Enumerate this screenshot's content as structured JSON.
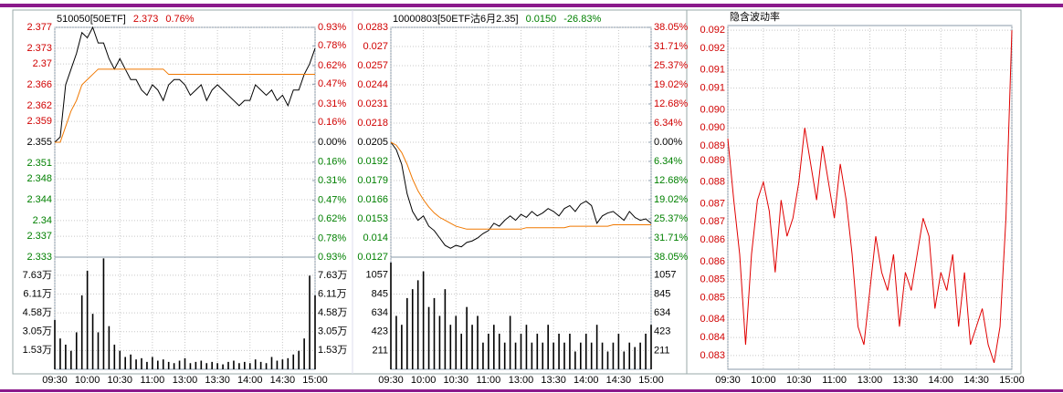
{
  "chart_data": [
    {
      "type": "line",
      "header": [
        "510050[50ETF]",
        "2.373",
        "0.76%"
      ],
      "header_colors": [
        "#000000",
        "#d00000",
        "#d00000"
      ],
      "up_color": "#d00000",
      "down_color": "#008000",
      "grid": true,
      "x": [
        0,
        5,
        10,
        15,
        20,
        25,
        30,
        35,
        40,
        45,
        50,
        55,
        60,
        65,
        70,
        75,
        80,
        85,
        90,
        95,
        100,
        105,
        110,
        115,
        120,
        125,
        130,
        135,
        140,
        145,
        150,
        155,
        160,
        165,
        170,
        175,
        180,
        185,
        190,
        195,
        200,
        205,
        210,
        215,
        220,
        225,
        230,
        235,
        240
      ],
      "xlim": [
        0,
        240
      ],
      "xticks": [
        {
          "value": 0,
          "label": "09:30"
        },
        {
          "value": 30,
          "label": "10:00"
        },
        {
          "value": 60,
          "label": "10:30"
        },
        {
          "value": 90,
          "label": "11:00"
        },
        {
          "value": 120,
          "label": "13:00"
        },
        {
          "value": 150,
          "label": "13:30"
        },
        {
          "value": 180,
          "label": "14:00"
        },
        {
          "value": 210,
          "label": "14:30"
        },
        {
          "value": 240,
          "label": "15:00"
        }
      ],
      "ylim": [
        2.333,
        2.377
      ],
      "yticks": [
        2.377,
        2.373,
        2.37,
        2.366,
        2.362,
        2.359,
        2.355,
        2.351,
        2.348,
        2.344,
        2.34,
        2.337,
        2.333
      ],
      "y2lim": [
        -0.93,
        0.93
      ],
      "y2ticks": [
        {
          "value": 0.93,
          "label": "0.93%"
        },
        {
          "value": 0.78,
          "label": "0.78%"
        },
        {
          "value": 0.62,
          "label": "0.62%"
        },
        {
          "value": 0.47,
          "label": "0.47%"
        },
        {
          "value": 0.31,
          "label": "0.31%"
        },
        {
          "value": 0.16,
          "label": "0.16%"
        },
        {
          "value": 0,
          "label": "0.00%"
        },
        {
          "value": -0.16,
          "label": "0.16%"
        },
        {
          "value": -0.31,
          "label": "0.31%"
        },
        {
          "value": -0.47,
          "label": "0.47%"
        },
        {
          "value": -0.62,
          "label": "0.62%"
        },
        {
          "value": -0.78,
          "label": "0.78%"
        },
        {
          "value": -0.93,
          "label": "0.93%"
        }
      ],
      "series": [
        {
          "color": "#000000",
          "values": [
            2.355,
            2.356,
            2.366,
            2.369,
            2.372,
            2.376,
            2.375,
            2.377,
            2.374,
            2.374,
            2.371,
            2.369,
            2.371,
            2.369,
            2.367,
            2.367,
            2.365,
            2.364,
            2.366,
            2.365,
            2.363,
            2.366,
            2.367,
            2.367,
            2.366,
            2.364,
            2.365,
            2.366,
            2.363,
            2.365,
            2.366,
            2.365,
            2.364,
            2.363,
            2.362,
            2.363,
            2.363,
            2.366,
            2.365,
            2.364,
            2.365,
            2.363,
            2.364,
            2.362,
            2.365,
            2.365,
            2.368,
            2.37,
            2.373
          ]
        },
        {
          "color": "#f07800",
          "values": [
            2.355,
            2.355,
            2.358,
            2.361,
            2.363,
            2.366,
            2.367,
            2.368,
            2.369,
            2.369,
            2.369,
            2.369,
            2.369,
            2.369,
            2.369,
            2.369,
            2.369,
            2.369,
            2.369,
            2.369,
            2.369,
            2.368,
            2.368,
            2.368,
            2.368,
            2.368,
            2.368,
            2.368,
            2.368,
            2.368,
            2.368,
            2.368,
            2.368,
            2.368,
            2.368,
            2.368,
            2.368,
            2.368,
            2.368,
            2.368,
            2.368,
            2.368,
            2.368,
            2.368,
            2.368,
            2.368,
            2.368,
            2.368,
            2.368
          ]
        }
      ],
      "volume": {
        "color": "#000000",
        "ylim": [
          0,
          91000
        ],
        "yticks": [
          {
            "value": 76300,
            "label": "7.63万"
          },
          {
            "value": 61100,
            "label": "6.11万"
          },
          {
            "value": 45800,
            "label": "4.58万"
          },
          {
            "value": 30500,
            "label": "3.05万"
          },
          {
            "value": 15300,
            "label": "1.53万"
          }
        ],
        "values": [
          40000,
          25000,
          20000,
          15000,
          30000,
          60000,
          80000,
          45000,
          30000,
          90000,
          35000,
          20000,
          15000,
          10000,
          12000,
          8000,
          9000,
          6000,
          10000,
          7000,
          8000,
          6000,
          5000,
          7000,
          9000,
          5000,
          6000,
          7000,
          5000,
          6000,
          5000,
          4000,
          6000,
          7000,
          5000,
          6000,
          5000,
          8000,
          6000,
          5000,
          10000,
          7000,
          8000,
          9000,
          12000,
          15000,
          25000,
          76000,
          60000
        ]
      }
    },
    {
      "type": "line",
      "header": [
        "10000803[50ETF沽6月2.35]",
        "0.0150",
        "-26.83%"
      ],
      "header_colors": [
        "#000000",
        "#008000",
        "#008000"
      ],
      "up_color": "#d00000",
      "down_color": "#008000",
      "grid": true,
      "x": [
        0,
        5,
        10,
        15,
        20,
        25,
        30,
        35,
        40,
        45,
        50,
        55,
        60,
        65,
        70,
        75,
        80,
        85,
        90,
        95,
        100,
        105,
        110,
        115,
        120,
        125,
        130,
        135,
        140,
        145,
        150,
        155,
        160,
        165,
        170,
        175,
        180,
        185,
        190,
        195,
        200,
        205,
        210,
        215,
        220,
        225,
        230,
        235,
        240
      ],
      "xlim": [
        0,
        240
      ],
      "xticks": [
        {
          "value": 0,
          "label": "09:30"
        },
        {
          "value": 30,
          "label": "10:00"
        },
        {
          "value": 60,
          "label": "10:30"
        },
        {
          "value": 90,
          "label": "11:00"
        },
        {
          "value": 120,
          "label": "13:00"
        },
        {
          "value": 150,
          "label": "13:30"
        },
        {
          "value": 180,
          "label": "14:00"
        },
        {
          "value": 210,
          "label": "14:30"
        },
        {
          "value": 240,
          "label": "15:00"
        }
      ],
      "ylim": [
        0.0127,
        0.0283
      ],
      "yticks": [
        0.0283,
        0.027,
        0.0257,
        0.0244,
        0.0231,
        0.0218,
        0.0205,
        0.0192,
        0.0179,
        0.0166,
        0.0153,
        0.014,
        0.0127
      ],
      "y2lim": [
        -38.05,
        38.05
      ],
      "y2ticks": [
        {
          "value": 38.05,
          "label": "38.05%"
        },
        {
          "value": 31.71,
          "label": "31.71%"
        },
        {
          "value": 25.37,
          "label": "25.37%"
        },
        {
          "value": 19.02,
          "label": "19.02%"
        },
        {
          "value": 12.68,
          "label": "12.68%"
        },
        {
          "value": 6.34,
          "label": "6.34%"
        },
        {
          "value": 0,
          "label": "0.00%"
        },
        {
          "value": -6.34,
          "label": "6.34%"
        },
        {
          "value": -12.68,
          "label": "12.68%"
        },
        {
          "value": -19.02,
          "label": "19.02%"
        },
        {
          "value": -25.37,
          "label": "25.37%"
        },
        {
          "value": -31.71,
          "label": "31.71%"
        },
        {
          "value": -38.05,
          "label": "38.05%"
        }
      ],
      "series": [
        {
          "color": "#000000",
          "values": [
            0.0205,
            0.02,
            0.019,
            0.017,
            0.0158,
            0.0152,
            0.0155,
            0.0148,
            0.0145,
            0.014,
            0.0135,
            0.0133,
            0.0135,
            0.0134,
            0.0137,
            0.0138,
            0.014,
            0.0143,
            0.0145,
            0.015,
            0.0148,
            0.0152,
            0.0155,
            0.0152,
            0.0156,
            0.0154,
            0.0158,
            0.0155,
            0.0157,
            0.016,
            0.0158,
            0.0155,
            0.016,
            0.0162,
            0.0158,
            0.0163,
            0.0165,
            0.0162,
            0.015,
            0.0155,
            0.0157,
            0.0158,
            0.0155,
            0.0152,
            0.0158,
            0.0154,
            0.0152,
            0.0153,
            0.015
          ]
        },
        {
          "color": "#f07800",
          "values": [
            0.0205,
            0.0203,
            0.0198,
            0.019,
            0.018,
            0.0172,
            0.0166,
            0.0161,
            0.0157,
            0.0154,
            0.0152,
            0.015,
            0.0148,
            0.0147,
            0.0146,
            0.0146,
            0.0146,
            0.0146,
            0.0146,
            0.0146,
            0.0146,
            0.0146,
            0.0146,
            0.0146,
            0.0146,
            0.0147,
            0.0147,
            0.0147,
            0.0147,
            0.0147,
            0.0147,
            0.0147,
            0.0147,
            0.0148,
            0.0148,
            0.0148,
            0.0148,
            0.0148,
            0.0148,
            0.0148,
            0.0148,
            0.0149,
            0.0149,
            0.0149,
            0.0149,
            0.0149,
            0.0149,
            0.0149,
            0.0149
          ]
        }
      ],
      "volume": {
        "color": "#000000",
        "ylim": [
          0,
          1260
        ],
        "yticks": [
          1057,
          845,
          634,
          423,
          211
        ],
        "values": [
          1200,
          600,
          500,
          800,
          900,
          1000,
          1100,
          700,
          800,
          600,
          900,
          500,
          600,
          400,
          700,
          500,
          600,
          300,
          400,
          500,
          400,
          300,
          600,
          300,
          400,
          500,
          300,
          400,
          300,
          500,
          300,
          400,
          300,
          400,
          200,
          300,
          400,
          300,
          500,
          300,
          200,
          300,
          400,
          200,
          300,
          250,
          300,
          400,
          500
        ]
      }
    },
    {
      "type": "line",
      "header": [
        "隐含波动率"
      ],
      "header_colors": [
        "#000000"
      ],
      "tick_color": "#d00000",
      "grid": true,
      "x": [
        0,
        5,
        10,
        15,
        20,
        25,
        30,
        35,
        40,
        45,
        50,
        55,
        60,
        65,
        70,
        75,
        80,
        85,
        90,
        95,
        100,
        105,
        110,
        115,
        120,
        125,
        130,
        135,
        140,
        145,
        150,
        155,
        160,
        165,
        170,
        175,
        180,
        185,
        190,
        195,
        200,
        205,
        210,
        215,
        220,
        225,
        230,
        235,
        240
      ],
      "xlim": [
        0,
        240
      ],
      "xticks": [
        {
          "value": 0,
          "label": "09:30"
        },
        {
          "value": 30,
          "label": "10:00"
        },
        {
          "value": 60,
          "label": "10:30"
        },
        {
          "value": 90,
          "label": "11:00"
        },
        {
          "value": 120,
          "label": "13:00"
        },
        {
          "value": 150,
          "label": "13:30"
        },
        {
          "value": 180,
          "label": "14:00"
        },
        {
          "value": 210,
          "label": "14:30"
        },
        {
          "value": 240,
          "label": "15:00"
        }
      ],
      "ylim": [
        0.08282,
        0.09233
      ],
      "yticks": [
        {
          "value": 0.0922,
          "label": "0.092"
        },
        {
          "value": 0.0917,
          "label": "0.092"
        },
        {
          "value": 0.0911,
          "label": "0.091"
        },
        {
          "value": 0.0906,
          "label": "0.091"
        },
        {
          "value": 0.09,
          "label": "0.090"
        },
        {
          "value": 0.0895,
          "label": "0.090"
        },
        {
          "value": 0.089,
          "label": "0.089"
        },
        {
          "value": 0.0886,
          "label": "0.089"
        },
        {
          "value": 0.088,
          "label": "0.088"
        },
        {
          "value": 0.0874,
          "label": "0.087"
        },
        {
          "value": 0.0869,
          "label": "0.087"
        },
        {
          "value": 0.0864,
          "label": "0.086"
        },
        {
          "value": 0.0858,
          "label": "0.086"
        },
        {
          "value": 0.0853,
          "label": "0.085"
        },
        {
          "value": 0.0848,
          "label": "0.085"
        },
        {
          "value": 0.0842,
          "label": "0.084"
        },
        {
          "value": 0.0837,
          "label": "0.084"
        },
        {
          "value": 0.0832,
          "label": "0.083"
        }
      ],
      "series": [
        {
          "color": "#e00000",
          "values": [
            0.0892,
            0.0875,
            0.086,
            0.0835,
            0.086,
            0.0875,
            0.088,
            0.0872,
            0.0855,
            0.0875,
            0.0865,
            0.087,
            0.088,
            0.0895,
            0.0885,
            0.0875,
            0.089,
            0.088,
            0.087,
            0.0885,
            0.0875,
            0.086,
            0.084,
            0.0835,
            0.085,
            0.0865,
            0.0855,
            0.085,
            0.086,
            0.084,
            0.0855,
            0.085,
            0.086,
            0.087,
            0.0865,
            0.0845,
            0.0855,
            0.085,
            0.086,
            0.084,
            0.0855,
            0.0835,
            0.084,
            0.0845,
            0.0835,
            0.083,
            0.084,
            0.087,
            0.0922
          ]
        }
      ]
    }
  ]
}
